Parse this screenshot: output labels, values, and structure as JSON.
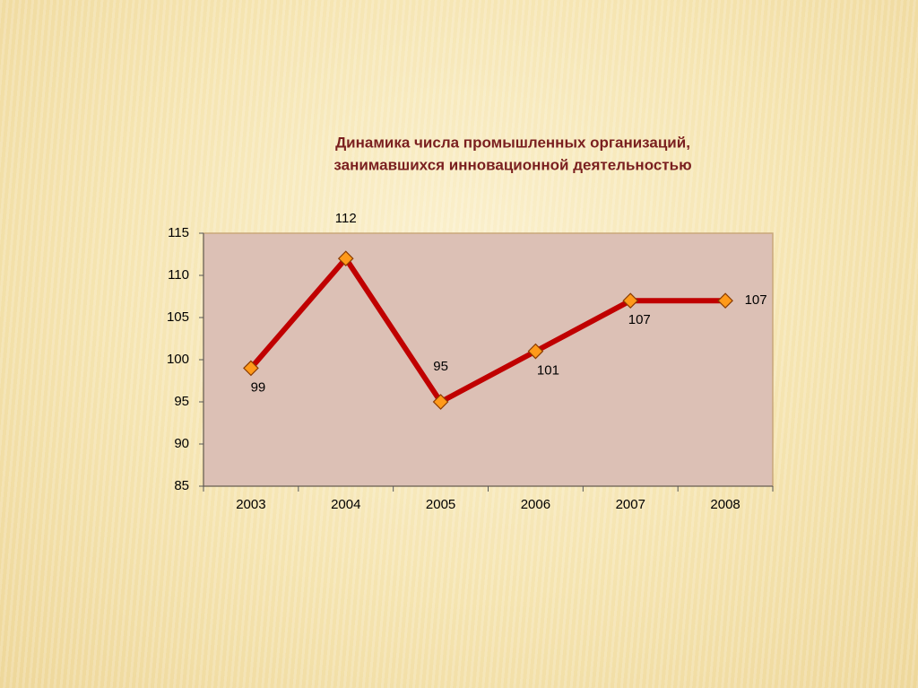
{
  "chart_data": {
    "type": "line",
    "title": [
      "Динамика числа промышленных организаций,",
      "занимавшихся инновационной деятельностью"
    ],
    "categories": [
      "2003",
      "2004",
      "2005",
      "2006",
      "2007",
      "2008"
    ],
    "values": [
      99,
      112,
      95,
      101,
      107,
      107
    ],
    "color": "#c00000",
    "marker_color": "#ff9a1a",
    "ylim": [
      85,
      115
    ],
    "yticks": [
      85,
      90,
      95,
      100,
      105,
      110,
      115
    ],
    "grid": false
  }
}
